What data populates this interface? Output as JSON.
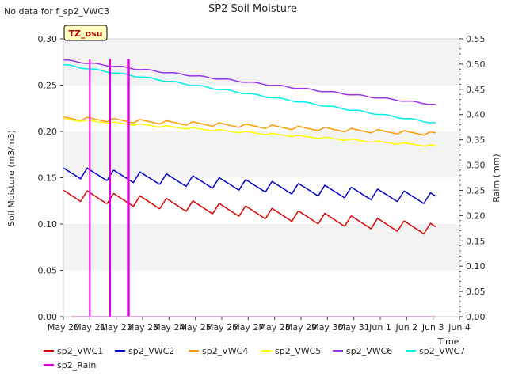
{
  "chart_data": {
    "type": "line",
    "title": "SP2 Soil Moisture",
    "no_data_note": "No data for f_sp2_VWC3",
    "site_badge": "TZ_osu",
    "xlabel": "Time",
    "ylabel": "Soil Moisture (m3/m3)",
    "y2label": "Raim (mm)",
    "x_range": [
      "May 20",
      "Jun 4"
    ],
    "x_ticks": [
      "May 20",
      "May 21",
      "May 22",
      "May 23",
      "May 24",
      "May 25",
      "May 26",
      "May 27",
      "May 28",
      "May 29",
      "May 30",
      "May 31",
      "Jun 1",
      "Jun 2",
      "Jun 3",
      "Jun 4"
    ],
    "ylim": [
      0.0,
      0.3
    ],
    "y_ticks": [
      "0.00",
      "0.05",
      "0.10",
      "0.15",
      "0.20",
      "0.25",
      "0.30"
    ],
    "y2lim": [
      0.0,
      0.55
    ],
    "y2_ticks": [
      "0.00",
      "0.05",
      "0.10",
      "0.15",
      "0.20",
      "0.25",
      "0.30",
      "0.35",
      "0.40",
      "0.45",
      "0.50",
      "0.55"
    ],
    "grid": "horizontal alternating bands",
    "legend_placement": "bottom",
    "series": [
      {
        "name": "sp2_VWC1",
        "color": "#dd0000",
        "axis": "left",
        "start": 0.131,
        "end": 0.093,
        "amplitude": 0.006,
        "diurnal": true
      },
      {
        "name": "sp2_VWC2",
        "color": "#0000cc",
        "axis": "left",
        "start": 0.155,
        "end": 0.126,
        "amplitude": 0.006,
        "diurnal": true
      },
      {
        "name": "sp2_VWC4",
        "color": "#ff9900",
        "axis": "left",
        "start": 0.214,
        "end": 0.197,
        "amplitude": 0.002,
        "diurnal": true
      },
      {
        "name": "sp2_VWC5",
        "color": "#ffff00",
        "axis": "left",
        "start": 0.213,
        "end": 0.184,
        "amplitude": 0.001,
        "diurnal": true
      },
      {
        "name": "sp2_VWC6",
        "color": "#9933ee",
        "axis": "left",
        "start": 0.277,
        "end": 0.229,
        "amplitude": 0.0007,
        "diurnal": false
      },
      {
        "name": "sp2_VWC7",
        "color": "#00eeee",
        "axis": "left",
        "start": 0.272,
        "end": 0.209,
        "amplitude": 0.0007,
        "diurnal": false
      },
      {
        "name": "sp2_Rain",
        "color": "#dd00dd",
        "axis": "right",
        "baseline": 0.0,
        "events": [
          {
            "x": "May 20 23:00",
            "day": 1.0,
            "value": 0.51
          },
          {
            "x": "May 21 18:00",
            "day": 1.77,
            "value": 0.51
          },
          {
            "x": "May 22 11:00",
            "day": 2.44,
            "value": 0.51
          },
          {
            "x": "May 22 12:00",
            "day": 2.48,
            "value": 0.51
          }
        ]
      }
    ]
  }
}
